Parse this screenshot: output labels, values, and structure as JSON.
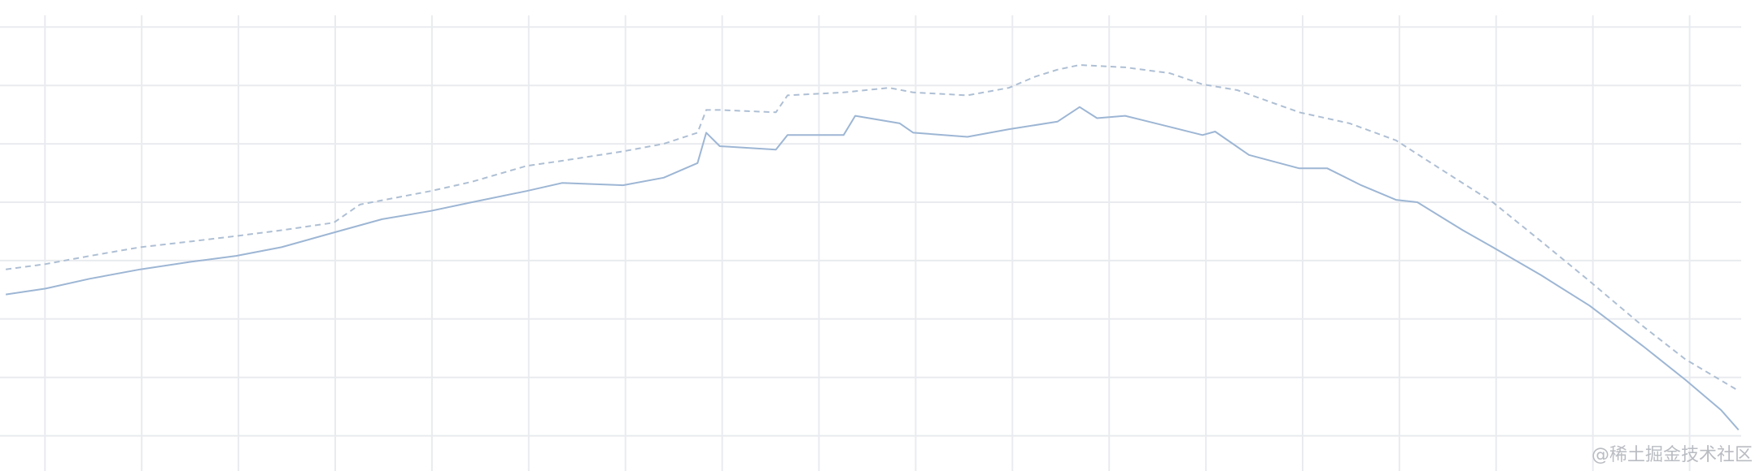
{
  "chart_data": {
    "type": "line",
    "title": "",
    "xlabel": "",
    "ylabel": "",
    "xlim": [
      0,
      18.2
    ],
    "ylim": [
      -0.6,
      7.45
    ],
    "grid": true,
    "legend": "none",
    "x_grid_values": [
      0.465,
      1.465,
      2.465,
      3.465,
      4.465,
      5.465,
      6.465,
      7.465,
      8.465,
      9.465,
      10.465,
      11.465,
      12.465,
      13.465,
      14.465,
      15.465,
      16.465,
      17.465
    ],
    "y_grid_values": [
      0,
      1,
      2,
      3,
      4,
      5,
      6,
      7
    ],
    "colors": {
      "grid": "#e9ebef",
      "solid": "#9db6d4",
      "dashed": "#aebfd4"
    },
    "series": [
      {
        "style": "solid",
        "x": [
          0.06,
          0.47,
          0.93,
          1.45,
          1.98,
          2.44,
          2.91,
          3.45,
          3.95,
          4.45,
          4.88,
          5.44,
          5.81,
          6.44,
          6.86,
          7.21,
          7.3,
          7.44,
          8.02,
          8.14,
          8.72,
          8.84,
          9.3,
          9.44,
          10.0,
          10.43,
          10.93,
          11.16,
          11.34,
          11.63,
          12.09,
          12.43,
          12.56,
          12.91,
          13.43,
          13.72,
          14.07,
          14.43,
          14.65,
          15.12,
          15.43,
          15.93,
          16.43,
          16.98,
          17.42,
          17.79,
          17.97
        ],
        "y": [
          2.42,
          2.52,
          2.69,
          2.85,
          2.98,
          3.08,
          3.23,
          3.48,
          3.71,
          3.85,
          4.0,
          4.19,
          4.33,
          4.29,
          4.42,
          4.67,
          5.19,
          4.96,
          4.9,
          5.15,
          5.15,
          5.48,
          5.35,
          5.19,
          5.12,
          5.25,
          5.38,
          5.63,
          5.44,
          5.48,
          5.29,
          5.15,
          5.21,
          4.81,
          4.58,
          4.58,
          4.29,
          4.04,
          4.0,
          3.52,
          3.23,
          2.75,
          2.23,
          1.54,
          0.96,
          0.44,
          0.1
        ]
      },
      {
        "style": "dashed",
        "x": [
          0.06,
          0.47,
          0.93,
          1.45,
          1.98,
          2.44,
          2.91,
          3.45,
          3.72,
          4.45,
          4.88,
          5.44,
          5.81,
          6.44,
          6.86,
          7.21,
          7.3,
          7.44,
          8.02,
          8.14,
          8.72,
          9.19,
          9.44,
          10.0,
          10.43,
          10.7,
          10.93,
          11.16,
          11.63,
          12.09,
          12.43,
          12.79,
          13.43,
          13.95,
          14.43,
          14.88,
          15.43,
          15.93,
          16.43,
          16.98,
          17.42,
          17.97
        ],
        "y": [
          2.85,
          2.94,
          3.08,
          3.23,
          3.33,
          3.42,
          3.52,
          3.65,
          3.96,
          4.19,
          4.35,
          4.62,
          4.71,
          4.87,
          5.0,
          5.19,
          5.58,
          5.58,
          5.54,
          5.83,
          5.88,
          5.96,
          5.88,
          5.83,
          5.96,
          6.15,
          6.27,
          6.35,
          6.31,
          6.21,
          6.02,
          5.92,
          5.54,
          5.35,
          5.06,
          4.58,
          4.0,
          3.33,
          2.65,
          1.88,
          1.31,
          0.77
        ]
      }
    ]
  },
  "watermark": "@稀土掘金技术社区"
}
